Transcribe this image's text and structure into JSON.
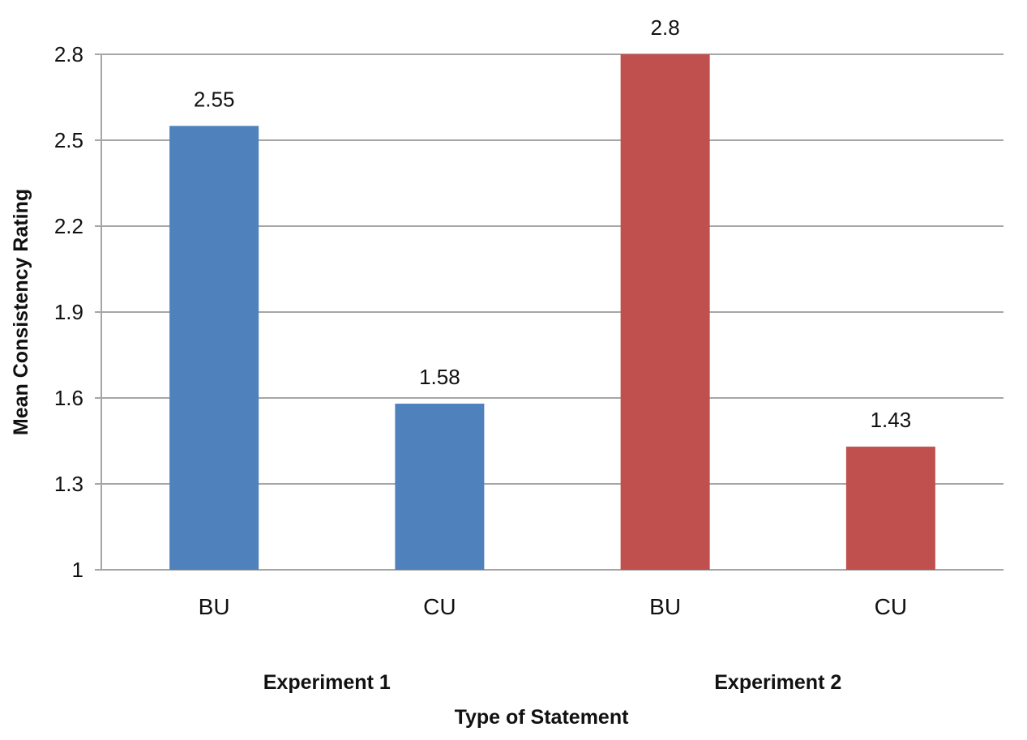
{
  "chart_data": {
    "type": "bar",
    "categories": [
      "BU",
      "CU",
      "BU",
      "CU"
    ],
    "groups": [
      {
        "label": "Experiment 1",
        "categories": [
          0,
          1
        ],
        "color": "#4f81bd"
      },
      {
        "label": "Experiment 2",
        "categories": [
          2,
          3
        ],
        "color": "#c0504d"
      }
    ],
    "values": [
      2.55,
      1.58,
      2.8,
      1.43
    ],
    "value_labels": [
      "2.55",
      "1.58",
      "2.8",
      "1.43"
    ],
    "colors": [
      "#4f81bd",
      "#4f81bd",
      "#c0504d",
      "#c0504d"
    ],
    "xlabel": "Type of Statement",
    "ylabel": "Mean Consistency Rating",
    "ylim": [
      1,
      2.8
    ],
    "yticks": [
      1,
      1.3,
      1.6,
      1.9,
      2.2,
      2.5,
      2.8
    ],
    "ytick_labels": [
      "1",
      "1.3",
      "1.6",
      "1.9",
      "2.2",
      "2.5",
      "2.8"
    ],
    "grid": true,
    "gridline_color": "#a6a6a6"
  }
}
